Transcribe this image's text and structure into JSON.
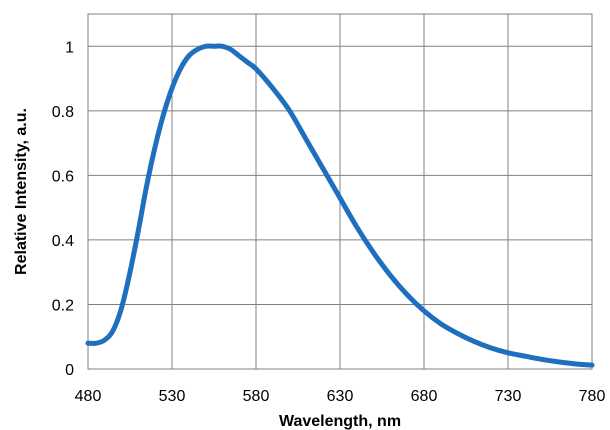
{
  "chart_data": {
    "type": "line",
    "xlabel": "Wavelength, nm",
    "ylabel": "Relative Intensity, a.u.",
    "xlim": [
      480,
      780
    ],
    "ylim": [
      0,
      1.1
    ],
    "x_ticks": [
      480,
      530,
      580,
      630,
      680,
      730,
      780
    ],
    "x_tick_labels": [
      "480",
      "530",
      "580",
      "630",
      "680",
      "730",
      "780"
    ],
    "y_ticks": [
      0,
      0.2,
      0.4,
      0.6,
      0.8,
      1.0
    ],
    "y_tick_labels": [
      "0",
      "0.2",
      "0.4",
      "0.6",
      "0.8",
      "1"
    ],
    "grid": true,
    "line_color": "#1F6FBF",
    "series": [
      {
        "x": [
          480,
          485,
          490,
          495,
          500,
          505,
          510,
          515,
          520,
          525,
          530,
          535,
          540,
          545,
          550,
          555,
          560,
          565,
          570,
          575,
          580,
          590,
          600,
          610,
          620,
          630,
          640,
          650,
          660,
          670,
          680,
          690,
          700,
          710,
          720,
          730,
          740,
          750,
          760,
          770,
          780
        ],
        "y": [
          0.08,
          0.08,
          0.09,
          0.12,
          0.19,
          0.3,
          0.43,
          0.57,
          0.69,
          0.79,
          0.87,
          0.93,
          0.97,
          0.99,
          1.0,
          1.0,
          1.0,
          0.99,
          0.97,
          0.95,
          0.93,
          0.87,
          0.8,
          0.71,
          0.62,
          0.53,
          0.44,
          0.36,
          0.29,
          0.23,
          0.18,
          0.14,
          0.11,
          0.085,
          0.065,
          0.05,
          0.04,
          0.03,
          0.022,
          0.016,
          0.012
        ]
      }
    ]
  }
}
